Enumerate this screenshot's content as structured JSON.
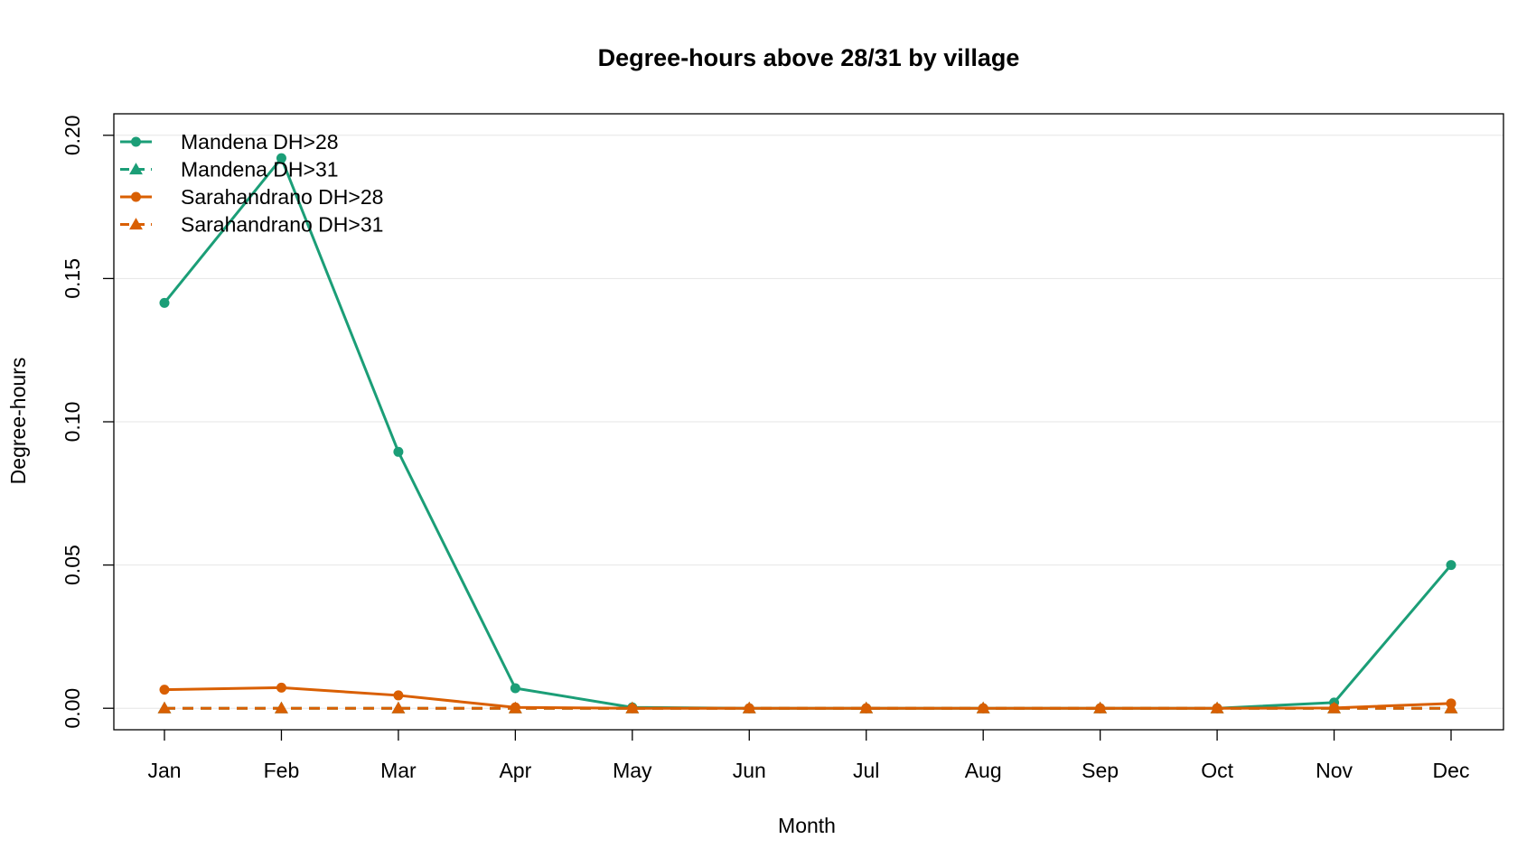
{
  "chart_data": {
    "type": "line",
    "title": "Degree-hours above 28/31 by village",
    "xlabel": "Month",
    "ylabel": "Degree-hours",
    "categories": [
      "Jan",
      "Feb",
      "Mar",
      "Apr",
      "May",
      "Jun",
      "Jul",
      "Aug",
      "Sep",
      "Oct",
      "Nov",
      "Dec"
    ],
    "y_ticks": [
      "0.00",
      "0.05",
      "0.10",
      "0.15",
      "0.20"
    ],
    "ylim": [
      -0.0075,
      0.2075
    ],
    "grid": "horizontal",
    "legend_position": "top-left",
    "series": [
      {
        "name": "Mandena DH>28",
        "color": "#1b9e77",
        "line": "solid",
        "marker": "circle",
        "values": [
          0.1415,
          0.192,
          0.0895,
          0.007,
          0.0003,
          0.0,
          0.0,
          0.0,
          0.0,
          0.0,
          0.002,
          0.05
        ]
      },
      {
        "name": "Mandena DH>31",
        "color": "#1b9e77",
        "line": "dashed",
        "marker": "triangle",
        "values": [
          0.0,
          0.0,
          0.0,
          0.0,
          0.0,
          0.0,
          0.0,
          0.0,
          0.0,
          0.0,
          0.0,
          0.0
        ]
      },
      {
        "name": "Sarahandrano DH>28",
        "color": "#d95f02",
        "line": "solid",
        "marker": "circle",
        "values": [
          0.0065,
          0.0072,
          0.0045,
          0.0003,
          0.0,
          0.0,
          0.0,
          0.0,
          0.0,
          0.0,
          0.0001,
          0.0017
        ]
      },
      {
        "name": "Sarahandrano DH>31",
        "color": "#d95f02",
        "line": "dashed",
        "marker": "triangle",
        "values": [
          0.0,
          0.0,
          0.0,
          0.0,
          0.0,
          0.0,
          0.0,
          0.0,
          0.0,
          0.0,
          0.0,
          0.0
        ]
      }
    ]
  }
}
